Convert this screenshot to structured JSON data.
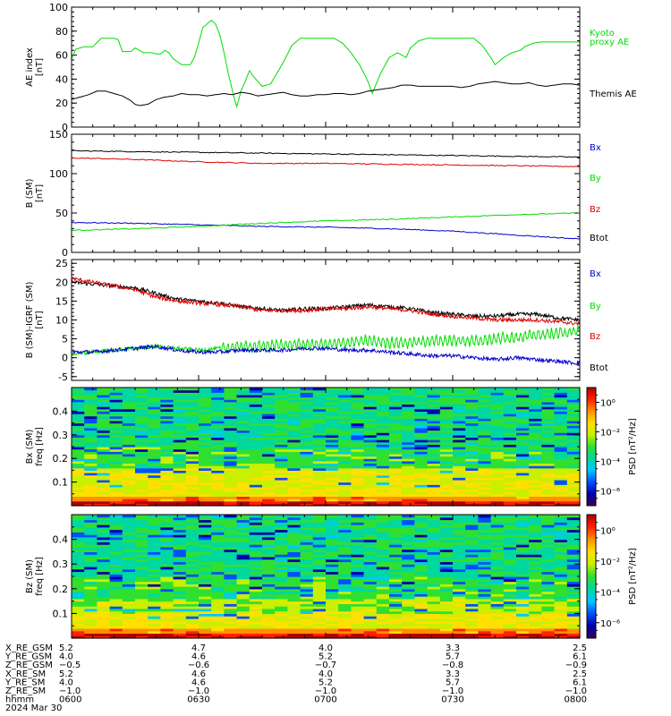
{
  "chart_data": [
    {
      "type": "line",
      "ylabel": "AE index",
      "yunit": "[nT]",
      "ylim": [
        0,
        100
      ],
      "yticks": [
        0,
        20,
        40,
        60,
        80,
        100
      ],
      "series": [
        {
          "name": "Kyoto proxy AE",
          "color": "#00dd00",
          "x": [
            0,
            1,
            3,
            5,
            7,
            8,
            10,
            11,
            12,
            13,
            14,
            15,
            16,
            17,
            19,
            20,
            21,
            22,
            23,
            24,
            26,
            27,
            28,
            29,
            30,
            31,
            33,
            34,
            35,
            36,
            37,
            38,
            39,
            40,
            41,
            42,
            43,
            44,
            45,
            47,
            48,
            50,
            52,
            54,
            56,
            58,
            60,
            62,
            64,
            66,
            68,
            70,
            71,
            73,
            75,
            77,
            79,
            80,
            82,
            84,
            86,
            88,
            90,
            91,
            93,
            95,
            97,
            99,
            100,
            102,
            104,
            106,
            107,
            109,
            111,
            113,
            114,
            116,
            118,
            119,
            120
          ],
          "y": [
            57,
            65,
            67,
            67,
            74,
            74,
            74,
            73,
            63,
            63,
            63,
            66,
            64,
            62,
            62,
            61,
            61,
            64,
            62,
            57,
            52,
            52,
            52,
            58,
            70,
            83,
            89,
            86,
            77,
            62,
            45,
            30,
            17,
            30,
            38,
            47,
            42,
            38,
            34,
            36,
            42,
            54,
            68,
            74,
            74,
            74,
            74,
            74,
            70,
            62,
            52,
            38,
            28,
            45,
            58,
            62,
            58,
            66,
            72,
            74,
            74,
            74,
            74,
            74,
            74,
            74,
            68,
            58,
            52,
            58,
            62,
            64,
            67,
            70,
            71,
            71,
            71,
            71,
            71,
            71,
            71
          ]
        },
        {
          "name": "Themis AE",
          "color": "#000000",
          "x": [
            0,
            2,
            4,
            6,
            8,
            10,
            12,
            14,
            15,
            16,
            18,
            20,
            22,
            24,
            26,
            28,
            30,
            32,
            34,
            36,
            38,
            40,
            42,
            44,
            46,
            48,
            50,
            52,
            54,
            56,
            58,
            60,
            62,
            64,
            66,
            68,
            70,
            72,
            74,
            76,
            78,
            80,
            82,
            84,
            86,
            88,
            90,
            92,
            94,
            96,
            98,
            100,
            102,
            104,
            106,
            108,
            110,
            112,
            114,
            116,
            118,
            120
          ],
          "y": [
            23,
            25,
            27,
            30,
            30,
            28,
            26,
            22,
            19,
            18,
            19,
            23,
            25,
            26,
            28,
            27,
            27,
            26,
            27,
            28,
            27,
            29,
            28,
            26,
            27,
            28,
            29,
            27,
            26,
            26,
            27,
            27,
            28,
            28,
            27,
            28,
            30,
            31,
            32,
            33,
            35,
            35,
            34,
            34,
            34,
            34,
            34,
            33,
            34,
            36,
            37,
            38,
            37,
            36,
            36,
            37,
            35,
            34,
            35,
            36,
            36,
            35
          ]
        }
      ]
    },
    {
      "type": "line",
      "ylabel": "B (SM)",
      "yunit": "[nT]",
      "ylim": [
        0,
        150
      ],
      "yticks": [
        0,
        50,
        100,
        150
      ],
      "legend": [
        {
          "name": "Bx",
          "color": "#0000cc"
        },
        {
          "name": "By",
          "color": "#00dd00"
        },
        {
          "name": "Bz",
          "color": "#dd0000"
        },
        {
          "name": "Btot",
          "color": "#000000"
        }
      ],
      "series": [
        {
          "name": "Btot",
          "color": "#000000",
          "x": [
            0,
            15,
            30,
            45,
            60,
            75,
            90,
            105,
            120
          ],
          "y": [
            129,
            128,
            127,
            126,
            125,
            124,
            123,
            122,
            121
          ]
        },
        {
          "name": "Bz",
          "color": "#dd0000",
          "x": [
            0,
            15,
            30,
            45,
            60,
            75,
            90,
            105,
            120
          ],
          "y": [
            120,
            118,
            115,
            113,
            113,
            112,
            111,
            110,
            109
          ]
        },
        {
          "name": "Bx",
          "color": "#0000cc",
          "x": [
            0,
            15,
            30,
            45,
            60,
            75,
            90,
            105,
            120
          ],
          "y": [
            38,
            37,
            35,
            33,
            32,
            30,
            27,
            22,
            17
          ]
        },
        {
          "name": "By",
          "color": "#00dd00",
          "x": [
            0,
            15,
            30,
            45,
            60,
            75,
            90,
            105,
            120
          ],
          "y": [
            28,
            30,
            33,
            37,
            40,
            42,
            45,
            48,
            50
          ]
        }
      ]
    },
    {
      "type": "line",
      "ylabel": "B (SM)-IGRF (SM)",
      "yunit": "[nT]",
      "ylim": [
        -6,
        26
      ],
      "yticks": [
        -5,
        0,
        5,
        10,
        15,
        20,
        25
      ],
      "legend": [
        {
          "name": "Bx",
          "color": "#0000cc"
        },
        {
          "name": "By",
          "color": "#00dd00"
        },
        {
          "name": "Bz",
          "color": "#dd0000"
        },
        {
          "name": "Btot",
          "color": "#000000"
        }
      ],
      "series": [
        {
          "name": "Btot",
          "color": "#000000",
          "x": [
            0,
            5,
            10,
            15,
            20,
            25,
            30,
            35,
            40,
            45,
            50,
            55,
            60,
            65,
            70,
            75,
            80,
            85,
            90,
            95,
            100,
            105,
            110,
            115,
            120
          ],
          "y": [
            20,
            19.5,
            19,
            18.5,
            17,
            15.5,
            15,
            14.5,
            13.5,
            13,
            12.5,
            13,
            13,
            13.5,
            14,
            13.5,
            13,
            12,
            11.5,
            11,
            11,
            11.5,
            11.5,
            10.5,
            10
          ]
        },
        {
          "name": "Bz",
          "color": "#dd0000",
          "x": [
            0,
            5,
            10,
            15,
            20,
            25,
            30,
            35,
            40,
            45,
            50,
            55,
            60,
            65,
            70,
            75,
            80,
            85,
            90,
            95,
            100,
            105,
            110,
            115,
            120
          ],
          "y": [
            21,
            20,
            19,
            18,
            16,
            15,
            14.5,
            14,
            13.5,
            12.5,
            12.5,
            12.5,
            13,
            13,
            13.5,
            13,
            12.5,
            11.5,
            11,
            10.5,
            10,
            10,
            10,
            9.5,
            9
          ]
        },
        {
          "name": "By",
          "color": "#00dd00",
          "x": [
            0,
            5,
            10,
            15,
            20,
            25,
            30,
            35,
            40,
            45,
            50,
            55,
            60,
            65,
            70,
            75,
            80,
            85,
            90,
            95,
            100,
            105,
            110,
            115,
            120
          ],
          "y": [
            1,
            1.5,
            2,
            2.5,
            3,
            2.5,
            2,
            2.5,
            3,
            3,
            3.5,
            3.5,
            3.5,
            4,
            4.5,
            4,
            4,
            4.5,
            4.5,
            4.5,
            5,
            5.5,
            6,
            6.5,
            7
          ]
        },
        {
          "name": "Bx",
          "color": "#0000cc",
          "x": [
            0,
            5,
            10,
            15,
            20,
            25,
            30,
            35,
            40,
            45,
            50,
            55,
            60,
            65,
            70,
            75,
            80,
            85,
            90,
            95,
            100,
            105,
            110,
            115,
            120
          ],
          "y": [
            1.5,
            1.5,
            2,
            2.5,
            3,
            2,
            1.5,
            1.5,
            2,
            2,
            2,
            2.5,
            2.5,
            2,
            2,
            1.5,
            1,
            0.5,
            0.5,
            0,
            -0.5,
            0,
            -0.5,
            -1,
            -1.5
          ]
        }
      ]
    },
    {
      "type": "heatmap",
      "ylabel": "Bx (SM)",
      "yunit": "freq [Hz]",
      "ylim": [
        0,
        0.5
      ],
      "yticks": [
        0.1,
        0.2,
        0.3,
        0.4
      ],
      "colorbar_label": "PSD [nT²/Hz]",
      "colorbar_ticks": [
        "10⁰",
        "10⁻²",
        "10⁻⁴",
        "10⁻⁶"
      ],
      "colorbar_tick_exponents": [
        0,
        -2,
        -4,
        -6
      ],
      "colorbar_range_exponent": [
        -7,
        1
      ],
      "colormap": [
        "#3a0055",
        "#0000aa",
        "#0050ff",
        "#00c8ff",
        "#00d8a0",
        "#30e030",
        "#c8f000",
        "#ffe000",
        "#ff9000",
        "#ff2000",
        "#b00000"
      ],
      "columns": 40,
      "rows": 50,
      "pattern": "high PSD (red/orange) near 0 Hz, yellow band around 0.1–0.15 Hz, mostly green/cyan above 0.2 Hz with scattered blue streaks"
    },
    {
      "type": "heatmap",
      "ylabel": "Bz (SM)",
      "yunit": "freq [Hz]",
      "ylim": [
        0,
        0.5
      ],
      "yticks": [
        0.1,
        0.2,
        0.3,
        0.4
      ],
      "colorbar_label": "PSD [nT²/Hz]",
      "colorbar_ticks": [
        "10⁰",
        "10⁻²",
        "10⁻⁴",
        "10⁻⁶"
      ],
      "colorbar_tick_exponents": [
        0,
        -2,
        -4,
        -6
      ],
      "colorbar_range_exponent": [
        -7,
        1
      ],
      "colormap": [
        "#3a0055",
        "#0000aa",
        "#0050ff",
        "#00c8ff",
        "#00d8a0",
        "#30e030",
        "#c8f000",
        "#ffe000",
        "#ff9000",
        "#ff2000",
        "#b00000"
      ],
      "columns": 40,
      "rows": 50,
      "pattern": "high PSD (red/orange) near 0 Hz, yellow-green around 0.1–0.15 Hz, green/cyan above 0.2 Hz with scattered blue streaks"
    }
  ],
  "xaxis": {
    "x_range": [
      0,
      120
    ],
    "major_ticks": [
      0,
      30,
      60,
      90,
      120
    ],
    "rows": [
      {
        "label": "X_RE_GSM",
        "values": [
          "5.2",
          "4.7",
          "4.0",
          "3.3",
          "2.5"
        ]
      },
      {
        "label": "Y_RE_GSM",
        "values": [
          "4.0",
          "4.6",
          "5.2",
          "5.7",
          "6.1"
        ]
      },
      {
        "label": "Z_RE_GSM",
        "values": [
          "−0.5",
          "−0.6",
          "−0.7",
          "−0.8",
          "−0.9"
        ]
      },
      {
        "label": "X_RE_SM",
        "values": [
          "5.2",
          "4.6",
          "4.0",
          "3.3",
          "2.5"
        ]
      },
      {
        "label": "Y_RE_SM",
        "values": [
          "4.0",
          "4.6",
          "5.2",
          "5.7",
          "6.1"
        ]
      },
      {
        "label": "Z_RE_SM",
        "values": [
          "−1.0",
          "−1.0",
          "−1.0",
          "−1.0",
          "−1.0"
        ]
      },
      {
        "label": "hhmm",
        "values": [
          "0600",
          "0630",
          "0700",
          "0730",
          "0800"
        ]
      }
    ],
    "date": "2024 Mar 30"
  }
}
